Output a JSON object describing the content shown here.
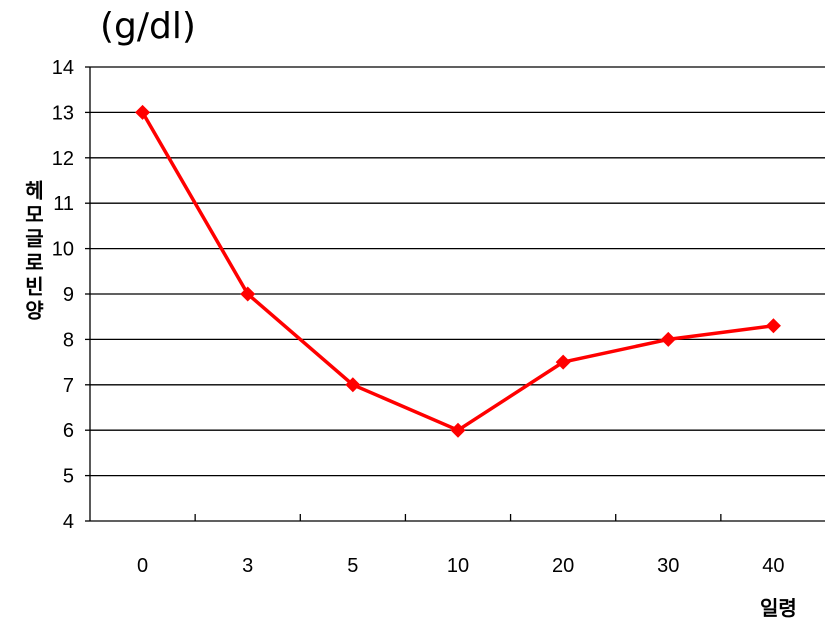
{
  "chart_data": {
    "type": "line",
    "categories": [
      "0",
      "3",
      "5",
      "10",
      "20",
      "30",
      "40"
    ],
    "series": [
      {
        "values": [
          13,
          9,
          7,
          6,
          7.5,
          8,
          8.3
        ],
        "color": "#ff0000",
        "marker": "diamond"
      }
    ],
    "unit_label": "(g/dl)",
    "ylabel": "헤모글로빈양",
    "xlabel": "일령",
    "ylim": [
      4,
      14
    ],
    "yticks": [
      4,
      5,
      6,
      7,
      8,
      9,
      10,
      11,
      12,
      13,
      14
    ],
    "grid": true,
    "legend": "none"
  }
}
